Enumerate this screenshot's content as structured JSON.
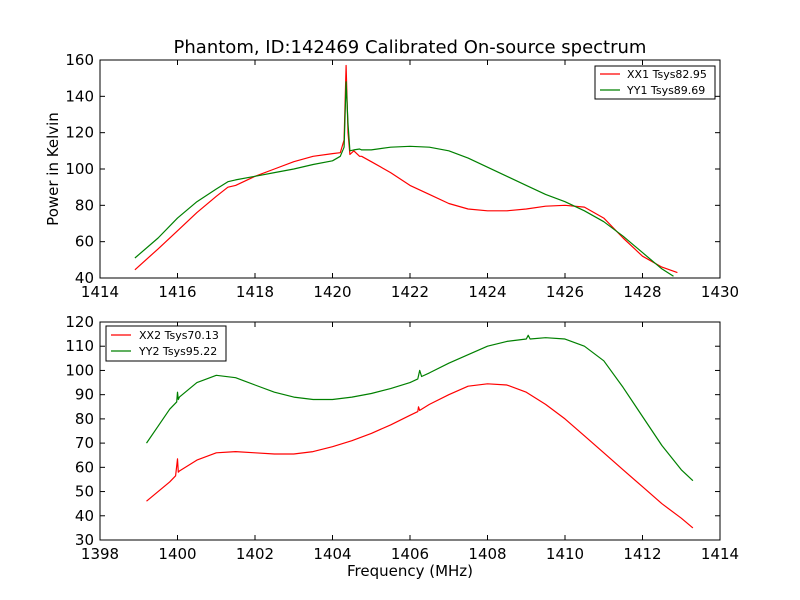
{
  "figure": {
    "title": "Phantom, ID:142469 Calibrated On-source spectrum",
    "background": "#ffffff"
  },
  "chart_data": [
    {
      "type": "line",
      "title": "Phantom, ID:142469 Calibrated On-source spectrum",
      "xlabel": "",
      "ylabel": "Power in Kelvin",
      "xlim": [
        1414,
        1430
      ],
      "ylim": [
        40,
        160
      ],
      "xticks": [
        "1414",
        "1416",
        "1418",
        "1420",
        "1422",
        "1424",
        "1426",
        "1428",
        "1430"
      ],
      "yticks": [
        "40",
        "60",
        "80",
        "100",
        "120",
        "140",
        "160"
      ],
      "legend_position": "top-right",
      "series": [
        {
          "name": "XX1 Tsys82.95",
          "color": "#ff0000",
          "x": [
            1414.9,
            1415.5,
            1416.0,
            1416.5,
            1417.0,
            1417.3,
            1417.5,
            1418.0,
            1418.5,
            1419.0,
            1419.5,
            1420.0,
            1420.2,
            1420.3,
            1420.35,
            1420.4,
            1420.45,
            1420.55,
            1420.7,
            1420.75,
            1421.0,
            1421.5,
            1422.0,
            1422.5,
            1423.0,
            1423.5,
            1424.0,
            1424.5,
            1425.0,
            1425.5,
            1426.0,
            1426.5,
            1427.0,
            1427.5,
            1428.0,
            1428.5,
            1428.9
          ],
          "y": [
            44.5,
            56,
            66,
            76,
            85,
            90,
            91,
            96,
            100,
            104,
            107,
            108.5,
            109,
            116,
            157,
            120,
            108,
            110,
            107,
            107,
            104,
            98,
            91,
            86,
            81,
            78,
            77,
            77,
            78,
            79.5,
            80,
            79,
            73,
            62,
            52,
            46,
            43
          ]
        },
        {
          "name": "YY1 Tsys89.69",
          "color": "#008000",
          "x": [
            1414.9,
            1415.5,
            1416.0,
            1416.5,
            1417.0,
            1417.3,
            1417.5,
            1418.0,
            1418.5,
            1419.0,
            1419.5,
            1420.0,
            1420.2,
            1420.3,
            1420.35,
            1420.4,
            1420.45,
            1420.55,
            1420.7,
            1420.75,
            1421.0,
            1421.5,
            1422.0,
            1422.5,
            1423.0,
            1423.5,
            1424.0,
            1424.5,
            1425.0,
            1425.5,
            1426.0,
            1426.5,
            1427.0,
            1427.5,
            1428.0,
            1428.5,
            1428.8
          ],
          "y": [
            51,
            62,
            73,
            82,
            89,
            93,
            94,
            96,
            98,
            100,
            102.5,
            104.5,
            107,
            112,
            148,
            125,
            110,
            110.5,
            111,
            110.5,
            110.5,
            112,
            112.5,
            112,
            110,
            106,
            101,
            96,
            91,
            86,
            82,
            77,
            71,
            63,
            54,
            45,
            41
          ]
        }
      ]
    },
    {
      "type": "line",
      "title": "",
      "xlabel": "Frequency (MHz)",
      "ylabel": "",
      "xlim": [
        1398,
        1414
      ],
      "ylim": [
        30,
        120
      ],
      "xticks": [
        "1398",
        "1400",
        "1402",
        "1404",
        "1406",
        "1408",
        "1410",
        "1412",
        "1414"
      ],
      "yticks": [
        "30",
        "40",
        "50",
        "60",
        "70",
        "80",
        "90",
        "100",
        "110",
        "120"
      ],
      "legend_position": "top-left",
      "series": [
        {
          "name": "XX2 Tsys70.13",
          "color": "#ff0000",
          "x": [
            1399.2,
            1399.5,
            1399.8,
            1399.95,
            1400.0,
            1400.02,
            1400.05,
            1400.5,
            1401.0,
            1401.5,
            1402.0,
            1402.5,
            1403.0,
            1403.5,
            1404.0,
            1404.5,
            1405.0,
            1405.5,
            1406.0,
            1406.2,
            1406.22,
            1406.25,
            1406.5,
            1407.0,
            1407.5,
            1408.0,
            1408.5,
            1409.0,
            1409.5,
            1410.0,
            1410.5,
            1411.0,
            1411.5,
            1412.0,
            1412.5,
            1413.0,
            1413.3
          ],
          "y": [
            46,
            50,
            54,
            56.5,
            63.5,
            58,
            58.5,
            63,
            66,
            66.5,
            66,
            65.5,
            65.5,
            66.5,
            68.5,
            71,
            74,
            77.5,
            81.5,
            83,
            85,
            83.5,
            86,
            90,
            93.5,
            94.5,
            94,
            91,
            86,
            80,
            73,
            66,
            59,
            52,
            45,
            39,
            35
          ]
        },
        {
          "name": "YY2 Tsys95.22",
          "color": "#008000",
          "x": [
            1399.2,
            1399.5,
            1399.8,
            1399.98,
            1400.0,
            1400.02,
            1400.05,
            1400.5,
            1401.0,
            1401.5,
            1402.0,
            1402.5,
            1403.0,
            1403.5,
            1404.0,
            1404.5,
            1405.0,
            1405.5,
            1406.0,
            1406.2,
            1406.25,
            1406.3,
            1406.5,
            1407.0,
            1407.5,
            1408.0,
            1408.5,
            1409.0,
            1409.05,
            1409.1,
            1409.5,
            1410.0,
            1410.5,
            1411.0,
            1411.5,
            1412.0,
            1412.5,
            1413.0,
            1413.3
          ],
          "y": [
            70,
            77,
            84,
            87,
            91,
            88,
            89,
            95,
            98,
            97,
            94,
            91,
            89,
            88,
            88,
            89,
            90.5,
            92.5,
            95,
            96.5,
            100,
            97.5,
            99,
            103,
            106.5,
            110,
            112,
            113,
            114.5,
            113,
            113.5,
            113,
            110,
            104,
            93,
            81,
            69,
            59,
            54.5
          ]
        }
      ]
    }
  ]
}
